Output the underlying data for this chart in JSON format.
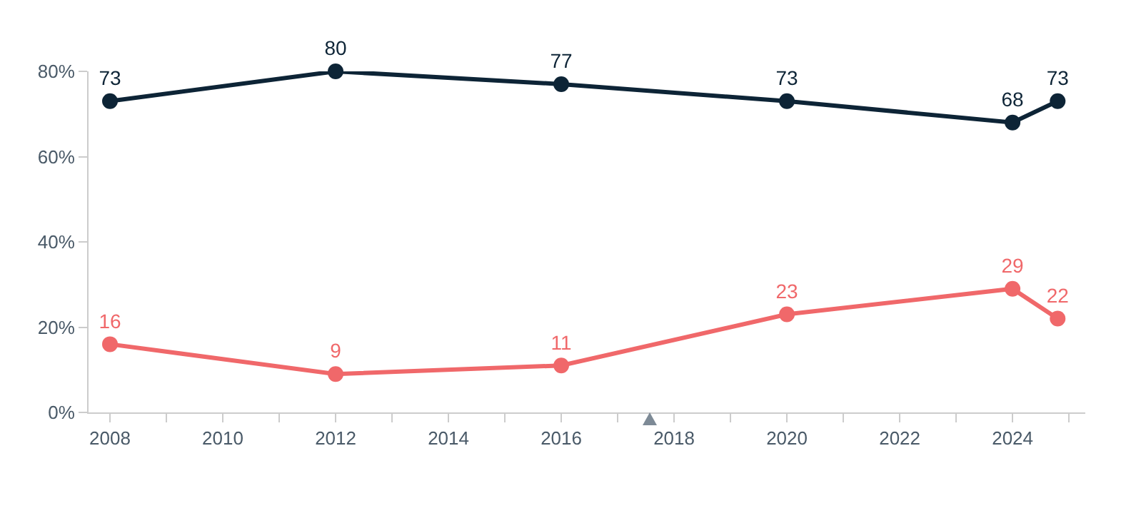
{
  "chart_data": {
    "type": "line",
    "x": [
      2008,
      2012,
      2016,
      2020,
      2024,
      2024.8
    ],
    "series": [
      {
        "color": "#0d2436",
        "values": [
          73,
          80,
          77,
          73,
          68,
          73
        ]
      },
      {
        "color": "#f0686a",
        "values": [
          16,
          9,
          11,
          23,
          29,
          22
        ]
      }
    ],
    "xlim": [
      2007.62,
      2025.29
    ],
    "xticks": [
      2008,
      {
        "value": 2009,
        "label": null
      },
      2010,
      {
        "value": 2011,
        "label": null
      },
      2012,
      {
        "value": 2013,
        "label": null
      },
      2014,
      {
        "value": 2015,
        "label": null
      },
      2016,
      {
        "value": 2017,
        "label": null
      },
      2018,
      {
        "value": 2019,
        "label": null
      },
      2020,
      {
        "value": 2021,
        "label": null
      },
      2022,
      {
        "value": 2023,
        "label": null
      },
      2024,
      {
        "value": 2025,
        "label": null
      }
    ],
    "ylim": [
      0,
      80
    ],
    "yticks": [
      {
        "value": 0,
        "label": "0%"
      },
      {
        "value": 20,
        "label": "20%"
      },
      {
        "value": 40,
        "label": "40%"
      },
      {
        "value": 60,
        "label": "60%"
      },
      {
        "value": 80,
        "label": "80%"
      }
    ],
    "grid": false,
    "legend": false,
    "marker": "circle",
    "line_style": "solid",
    "data_labels": true
  }
}
